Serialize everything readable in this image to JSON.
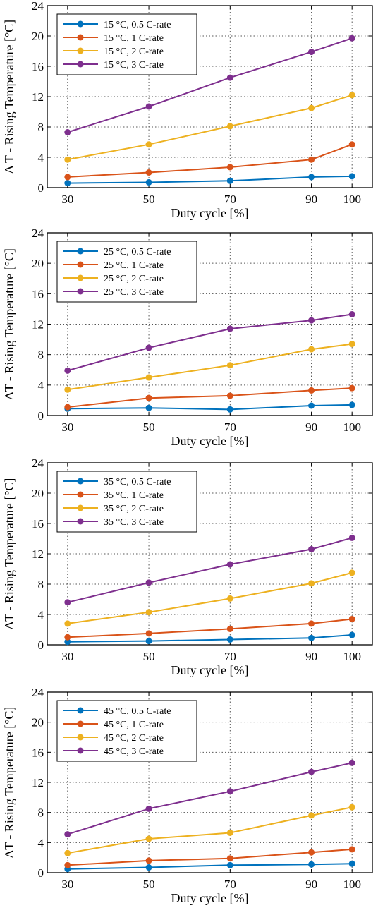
{
  "chart_data": [
    {
      "type": "line",
      "xlabel": "Duty cycle [%]",
      "ylabel": "Δ T - Rising Temperature [°C]",
      "x": [
        30,
        50,
        70,
        90,
        100
      ],
      "xlim": [
        25,
        105
      ],
      "ylim": [
        0,
        24
      ],
      "yticks": [
        0,
        4,
        8,
        12,
        16,
        20,
        24
      ],
      "xticks": [
        30,
        50,
        70,
        90,
        100
      ],
      "grid": true,
      "legend_position": "top-left",
      "series": [
        {
          "name": "15 °C, 0.5 C-rate",
          "color": "#0072BD",
          "values": [
            0.6,
            0.7,
            0.9,
            1.4,
            1.5
          ]
        },
        {
          "name": "15 °C, 1 C-rate",
          "color": "#D95319",
          "values": [
            1.4,
            2.0,
            2.7,
            3.7,
            5.7
          ]
        },
        {
          "name": "15 °C, 2 C-rate",
          "color": "#EDB120",
          "values": [
            3.7,
            5.7,
            8.1,
            10.5,
            12.2
          ]
        },
        {
          "name": "15 °C, 3 C-rate",
          "color": "#7E2F8E",
          "values": [
            7.3,
            10.7,
            14.5,
            17.9,
            19.7
          ]
        }
      ]
    },
    {
      "type": "line",
      "xlabel": "Duty cycle [%]",
      "ylabel": "ΔT - Rising Temperature [°C]",
      "x": [
        30,
        50,
        70,
        90,
        100
      ],
      "xlim": [
        25,
        105
      ],
      "ylim": [
        0,
        24
      ],
      "yticks": [
        0,
        4,
        8,
        12,
        16,
        20,
        24
      ],
      "xticks": [
        30,
        50,
        70,
        90,
        100
      ],
      "grid": true,
      "legend_position": "top-left",
      "series": [
        {
          "name": "25 °C, 0.5 C-rate",
          "color": "#0072BD",
          "values": [
            0.9,
            1.0,
            0.8,
            1.3,
            1.4
          ]
        },
        {
          "name": "25 °C, 1 C-rate",
          "color": "#D95319",
          "values": [
            1.1,
            2.3,
            2.6,
            3.3,
            3.6
          ]
        },
        {
          "name": "25 °C, 2 C-rate",
          "color": "#EDB120",
          "values": [
            3.4,
            5.0,
            6.6,
            8.7,
            9.4
          ]
        },
        {
          "name": "25 °C, 3 C-rate",
          "color": "#7E2F8E",
          "values": [
            5.9,
            8.9,
            11.4,
            12.5,
            13.3
          ]
        }
      ]
    },
    {
      "type": "line",
      "xlabel": "Duty cycle [%]",
      "ylabel": "ΔT - Rising Temperature [°C]",
      "x": [
        30,
        50,
        70,
        90,
        100
      ],
      "xlim": [
        25,
        105
      ],
      "ylim": [
        0,
        24
      ],
      "yticks": [
        0,
        4,
        8,
        12,
        16,
        20,
        24
      ],
      "xticks": [
        30,
        50,
        70,
        90,
        100
      ],
      "grid": true,
      "legend_position": "top-left",
      "series": [
        {
          "name": "35 °C, 0.5 C-rate",
          "color": "#0072BD",
          "values": [
            0.4,
            0.5,
            0.7,
            0.9,
            1.3
          ]
        },
        {
          "name": "35 °C, 1 C-rate",
          "color": "#D95319",
          "values": [
            1.0,
            1.5,
            2.1,
            2.8,
            3.4
          ]
        },
        {
          "name": "35 °C, 2 C-rate",
          "color": "#EDB120",
          "values": [
            2.8,
            4.3,
            6.1,
            8.1,
            9.5
          ]
        },
        {
          "name": "35 °C, 3 C-rate",
          "color": "#7E2F8E",
          "values": [
            5.6,
            8.2,
            10.6,
            12.6,
            14.1
          ]
        }
      ]
    },
    {
      "type": "line",
      "xlabel": "Duty cycle [%]",
      "ylabel": "ΔT - Rising Temperature [°C]",
      "x": [
        30,
        50,
        70,
        90,
        100
      ],
      "xlim": [
        25,
        105
      ],
      "ylim": [
        0,
        24
      ],
      "yticks": [
        0,
        4,
        8,
        12,
        16,
        20,
        24
      ],
      "xticks": [
        30,
        50,
        70,
        90,
        100
      ],
      "grid": true,
      "legend_position": "top-left",
      "series": [
        {
          "name": "45 °C, 0.5 C-rate",
          "color": "#0072BD",
          "values": [
            0.5,
            0.7,
            1.0,
            1.1,
            1.2
          ]
        },
        {
          "name": "45 °C, 1 C-rate",
          "color": "#D95319",
          "values": [
            1.0,
            1.6,
            1.9,
            2.7,
            3.1
          ]
        },
        {
          "name": "45 °C, 2 C-rate",
          "color": "#EDB120",
          "values": [
            2.6,
            4.5,
            5.3,
            7.6,
            8.7
          ]
        },
        {
          "name": "45 °C, 3 C-rate",
          "color": "#7E2F8E",
          "values": [
            5.1,
            8.5,
            10.8,
            13.4,
            14.6
          ]
        }
      ]
    }
  ]
}
